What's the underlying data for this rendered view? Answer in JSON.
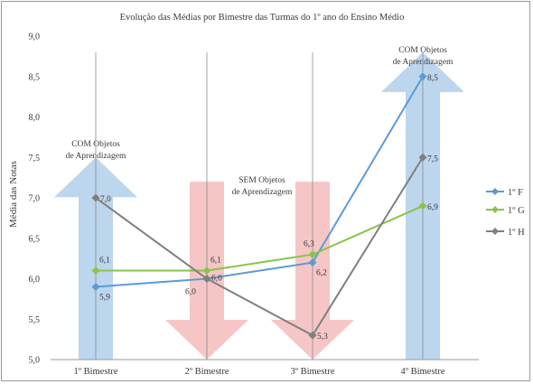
{
  "chart_data": {
    "type": "line",
    "title": "Evolução das Médias por Bimestre das Turmas do 1º ano do Ensino Médio",
    "ylabel": "Média das Notas",
    "xlabel": "",
    "ylim": [
      5.0,
      9.0
    ],
    "ytick_step": 0.5,
    "ytick_labels": [
      "5,0",
      "5,5",
      "6,0",
      "6,5",
      "7,0",
      "7,5",
      "8,0",
      "8,5",
      "9,0"
    ],
    "categories": [
      "1º Bimestre",
      "2º Bimestre",
      "3º Bimestre",
      "4º Bimestre"
    ],
    "grid": false,
    "legend_position": "right",
    "series": [
      {
        "name": "1º F",
        "values": [
          5.9,
          6.0,
          6.2,
          8.5
        ],
        "labels": [
          "5,9",
          "",
          "6,2",
          "8,5"
        ],
        "color": "#5b9bd5",
        "icon": "diamond-marker"
      },
      {
        "name": "1º G",
        "values": [
          6.1,
          6.1,
          6.3,
          6.9
        ],
        "labels": [
          "6,1",
          "6,1",
          "6,3",
          "6,9"
        ],
        "color": "#8bc34a",
        "icon": "diamond-marker"
      },
      {
        "name": "1º H",
        "values": [
          7.0,
          6.0,
          5.3,
          7.5
        ],
        "labels": [
          "7,0",
          "6,0",
          "5,3",
          "7,5"
        ],
        "color": "#7f7f7f",
        "icon": "diamond-marker"
      }
    ],
    "extra_labels": [
      {
        "text": "6,0",
        "category": "2º Bimestre",
        "value": 6.0
      }
    ],
    "annotations": [
      {
        "category": "1º Bimestre",
        "line1": "COM Objetos",
        "line2": "de Aprendizagem",
        "arrow": "up",
        "arrow_color": "#bcd6ee",
        "from": 5.0,
        "to": 7.5
      },
      {
        "category": "2º Bimestre",
        "line1": "SEM Objetos",
        "line2": "de Aprendizagem",
        "arrow": "down",
        "arrow_color": "#f6c6c6",
        "from": 7.2,
        "to": 5.0
      },
      {
        "category": "3º Bimestre",
        "line1": "",
        "line2": "",
        "arrow": "down",
        "arrow_color": "#f6c6c6",
        "from": 7.2,
        "to": 5.0
      },
      {
        "category": "4º Bimestre",
        "line1": "COM Objetos",
        "line2": "de Aprendizagem",
        "arrow": "up",
        "arrow_color": "#bcd6ee",
        "from": 5.0,
        "to": 8.8
      }
    ]
  }
}
